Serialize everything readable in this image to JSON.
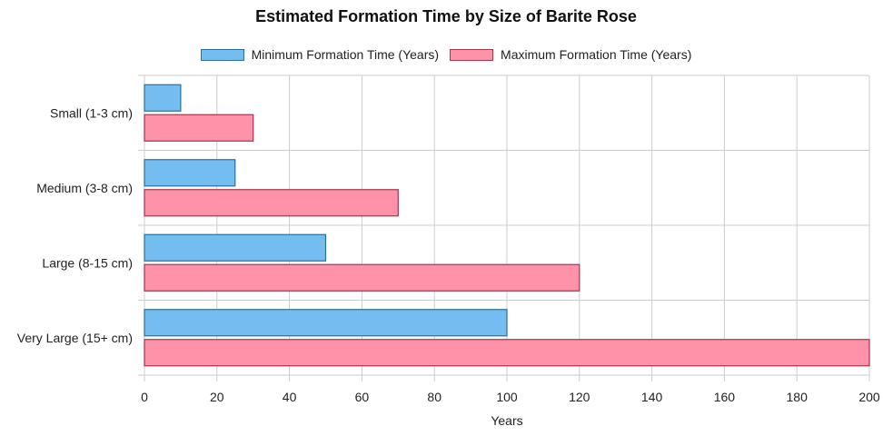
{
  "chart_data": {
    "type": "bar",
    "orientation": "horizontal",
    "title": "Estimated Formation Time by Size of Barite Rose",
    "xlabel": "Years",
    "ylabel": "",
    "categories": [
      "Small (1-3 cm)",
      "Medium (3-8 cm)",
      "Large (8-15 cm)",
      "Very Large (15+ cm)"
    ],
    "series": [
      {
        "name": "Minimum Formation Time (Years)",
        "values": [
          10,
          25,
          50,
          100
        ],
        "color": "#74bdf0",
        "border": "#2c6e9e"
      },
      {
        "name": "Maximum Formation Time (Years)",
        "values": [
          30,
          70,
          120,
          200
        ],
        "color": "#ff91a8",
        "border": "#a0364f"
      }
    ],
    "xlim": [
      0,
      200
    ],
    "xticks": [
      0,
      20,
      40,
      60,
      80,
      100,
      120,
      140,
      160,
      180,
      200
    ],
    "grid": true,
    "legend_position": "top-center"
  }
}
